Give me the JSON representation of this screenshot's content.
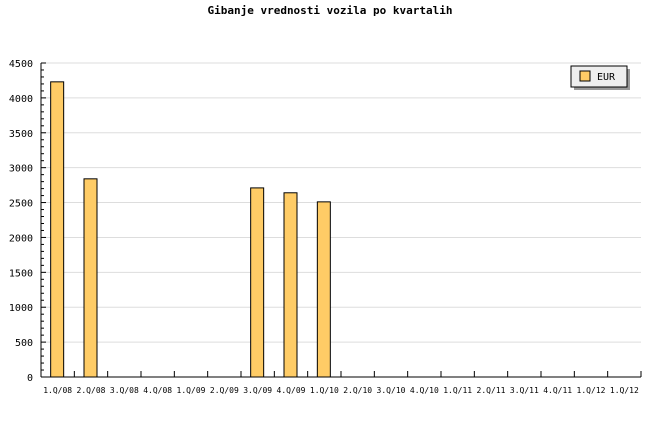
{
  "chart_data": {
    "type": "bar",
    "title": "Gibanje vrednosti vozila po kvartalih",
    "categories": [
      "1.Q/08",
      "2.Q/08",
      "3.Q/08",
      "4.Q/08",
      "1.Q/09",
      "2.Q/09",
      "3.Q/09",
      "4.Q/09",
      "1.Q/10",
      "2.Q/10",
      "3.Q/10",
      "4.Q/10",
      "1.Q/11",
      "2.Q/11",
      "3.Q/11",
      "4.Q/11",
      "1.Q/12",
      "1.Q/12"
    ],
    "series": [
      {
        "name": "EUR",
        "values": [
          4230,
          2840,
          null,
          null,
          null,
          null,
          2710,
          2640,
          2510,
          null,
          null,
          null,
          null,
          null,
          null,
          null,
          null,
          null
        ]
      }
    ],
    "ylim": [
      0,
      4500
    ],
    "yticks": [
      0,
      500,
      1000,
      1500,
      2000,
      2500,
      3000,
      3500,
      4000,
      4500
    ],
    "grid": true,
    "legend": "top-right",
    "colors": {
      "bar": "#ffcc66",
      "grid": "#dddddd"
    }
  }
}
